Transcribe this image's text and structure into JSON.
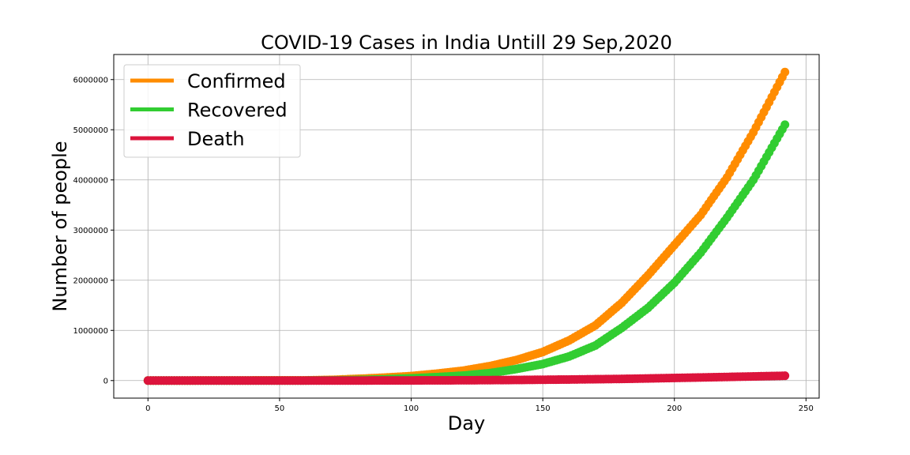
{
  "chart_data": {
    "type": "scatter",
    "title": "COVID-19 Cases in India Untill 29 Sep,2020",
    "xlabel": "Day",
    "ylabel": "Number of people",
    "xlim": [
      -13,
      255
    ],
    "ylim": [
      -350000,
      6500000
    ],
    "xticks": [
      0,
      50,
      100,
      150,
      200,
      250
    ],
    "yticks": [
      0,
      1000000,
      2000000,
      3000000,
      4000000,
      5000000,
      6000000
    ],
    "grid": true,
    "legend_position": "top-left",
    "series": [
      {
        "name": "Confirmed",
        "color": "#ff8c00",
        "x": [
          0,
          60,
          70,
          80,
          90,
          100,
          110,
          120,
          130,
          140,
          150,
          160,
          170,
          180,
          190,
          200,
          210,
          220,
          230,
          242
        ],
        "y": [
          0,
          5000,
          15000,
          35000,
          60000,
          90000,
          140000,
          200000,
          290000,
          410000,
          570000,
          800000,
          1100000,
          1550000,
          2100000,
          2700000,
          3300000,
          4050000,
          4950000,
          6150000
        ]
      },
      {
        "name": "Recovered",
        "color": "#32cd32",
        "x": [
          0,
          60,
          70,
          80,
          90,
          100,
          110,
          120,
          130,
          140,
          150,
          160,
          170,
          180,
          190,
          200,
          210,
          220,
          230,
          242
        ],
        "y": [
          0,
          1000,
          5000,
          12000,
          25000,
          45000,
          70000,
          100000,
          150000,
          230000,
          330000,
          480000,
          700000,
          1050000,
          1450000,
          1950000,
          2550000,
          3250000,
          4000000,
          5100000
        ]
      },
      {
        "name": "Death",
        "color": "#dc143c",
        "x": [
          0,
          60,
          80,
          100,
          120,
          140,
          160,
          180,
          200,
          220,
          242
        ],
        "y": [
          0,
          200,
          1000,
          3000,
          6000,
          12000,
          21000,
          33000,
          52000,
          72000,
          96000
        ]
      }
    ]
  }
}
